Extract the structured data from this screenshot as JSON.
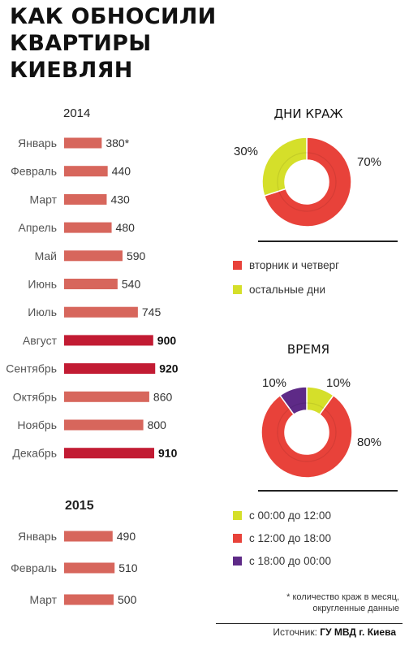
{
  "headline": [
    "КАК ОБНОСИЛИ",
    "КВАРТИРЫ",
    "КИЕВЛЯН"
  ],
  "colors": {
    "bar_normal": "#d7665c",
    "bar_high": "#c21b33",
    "pie_red": "#e8423a",
    "pie_yellow": "#d5df2a",
    "pie_purple": "#5e2a87"
  },
  "chart_data": [
    {
      "type": "bar",
      "title": "2014",
      "categories": [
        "Январь",
        "Февраль",
        "Март",
        "Апрель",
        "Май",
        "Июнь",
        "Июль",
        "Август",
        "Сентябрь",
        "Октябрь",
        "Ноябрь",
        "Декабрь"
      ],
      "values": [
        380,
        440,
        430,
        480,
        590,
        540,
        745,
        900,
        920,
        860,
        800,
        910
      ],
      "value_labels": [
        "380*",
        "440",
        "430",
        "480",
        "590",
        "540",
        "745",
        "900",
        "920",
        "860",
        "800",
        "910"
      ],
      "highlight": [
        false,
        false,
        false,
        false,
        false,
        false,
        false,
        true,
        true,
        false,
        false,
        true
      ]
    },
    {
      "type": "bar",
      "title": "2015",
      "categories": [
        "Январь",
        "Февраль",
        "Март"
      ],
      "values": [
        490,
        510,
        500
      ],
      "value_labels": [
        "490",
        "510",
        "500"
      ],
      "highlight": [
        false,
        false,
        false
      ]
    },
    {
      "type": "pie",
      "title": "ДНИ КРАЖ",
      "slices": [
        {
          "name": "вторник и четверг",
          "value": 70,
          "label": "70%",
          "color": "#e8423a"
        },
        {
          "name": "остальные дни",
          "value": 30,
          "label": "30%",
          "color": "#d5df2a"
        }
      ]
    },
    {
      "type": "pie",
      "title": "ВРЕМЯ",
      "slices": [
        {
          "name": "с 00:00 до 12:00",
          "value": 10,
          "label": "10%",
          "color": "#d5df2a"
        },
        {
          "name": "с 12:00 до 18:00",
          "value": 80,
          "label": "80%",
          "color": "#e8423a"
        },
        {
          "name": "с 18:00 до 00:00",
          "value": 10,
          "label": "10%",
          "color": "#5e2a87"
        }
      ]
    }
  ],
  "footnote": [
    "* количество краж в месяц,",
    "округленные данные"
  ],
  "source": {
    "prefix": "Источник:",
    "name": "ГУ МВД г. Киева"
  }
}
